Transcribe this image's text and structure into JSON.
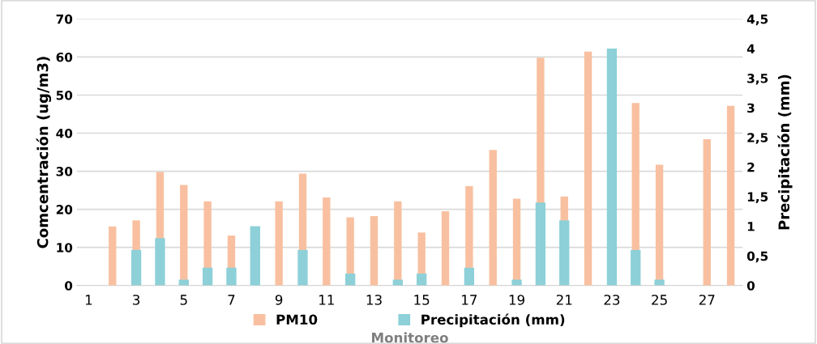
{
  "chart_data": {
    "type": "bar",
    "categories": [
      "1",
      null,
      "3",
      null,
      "5",
      null,
      "7",
      null,
      "9",
      null,
      "11",
      null,
      "13",
      null,
      "15",
      null,
      "17",
      null,
      "19",
      null,
      "21",
      null,
      "23",
      null,
      "25",
      null,
      "27",
      null
    ],
    "series": [
      {
        "name": "PM10",
        "color": "#f8c0a0",
        "values": [
          null,
          15.5,
          17.1,
          29.8,
          26.4,
          22.1,
          13.1,
          null,
          22.1,
          29.4,
          23.1,
          17.9,
          18.2,
          22.1,
          13.9,
          19.5,
          26.1,
          35.6,
          22.8,
          59.8,
          23.4,
          61.4,
          null,
          47.9,
          31.7,
          null,
          38.4,
          47.2
        ]
      },
      {
        "name": "Precipitación (mm)",
        "color": "#8dd0d8",
        "axis": "y2",
        "values": [
          null,
          null,
          0.6,
          0.8,
          0.1,
          0.3,
          0.3,
          1.0,
          null,
          0.6,
          null,
          0.2,
          null,
          0.1,
          0.2,
          null,
          0.3,
          null,
          0.1,
          1.4,
          1.1,
          null,
          4.0,
          0.6,
          0.1,
          null,
          null,
          null
        ]
      }
    ],
    "xlabel": "Monitoreo",
    "ylabel": "Comcentración (ug/m3)",
    "y2label": "Precipitación (mm)",
    "ylim": [
      0,
      70
    ],
    "yticks": [
      0,
      10,
      20,
      30,
      40,
      50,
      60,
      70
    ],
    "y2lim": [
      0,
      4.5
    ],
    "y2ticks": [
      0,
      {
        "value": 0.5,
        "label": "0,5"
      },
      1,
      {
        "value": 1.5,
        "label": "1,5"
      },
      2,
      {
        "value": 2.5,
        "label": "2,5"
      },
      3,
      {
        "value": 3.5,
        "label": "3,5"
      },
      4,
      {
        "value": 4.5,
        "label": "4,5"
      }
    ],
    "grid": "y",
    "legend": "bottom"
  }
}
